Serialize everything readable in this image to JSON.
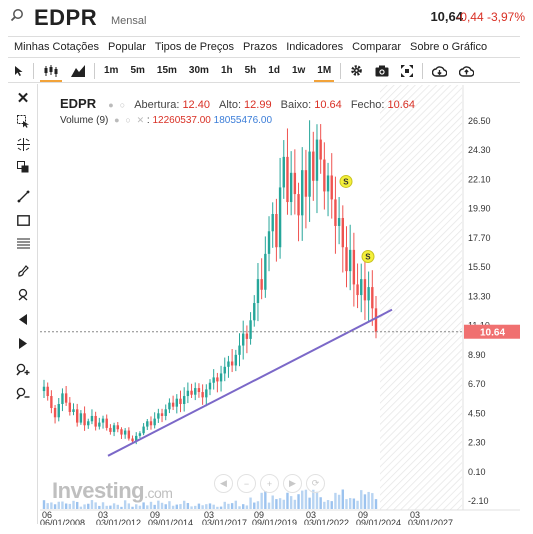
{
  "header": {
    "symbol": "EDPR",
    "period": "Mensal",
    "price": "10,64",
    "change": "-0,44 -3,97%"
  },
  "menu": [
    "Minhas Cotações",
    "Popular",
    "Tipos de Preços",
    "Prazos",
    "Indicadores",
    "Comparar",
    "Sobre o Gráfico"
  ],
  "toolbar": {
    "timeframes": [
      "1m",
      "5m",
      "15m",
      "30m",
      "1h",
      "5h",
      "1d",
      "1w",
      "1M"
    ],
    "active_timeframe": "1M"
  },
  "legend": {
    "symbol": "EDPR",
    "open_label": "Abertura:",
    "open": "12.40",
    "high_label": "Alto:",
    "high": "12.99",
    "low_label": "Baixo:",
    "low": "10.64",
    "close_label": "Fecho:",
    "close": "10.64",
    "volume_label": "Volume (9)",
    "volume_1": "12260537.00",
    "volume_2": "18055476.00"
  },
  "logo": {
    "brand": "Investing",
    "suffix": ".com"
  },
  "colors": {
    "up": "#26a69a",
    "down": "#ef5350",
    "trendline": "#7b68c8",
    "price_tag": "#f07070"
  },
  "chart_data": {
    "type": "candlestick",
    "yticks": [
      "26.50",
      "24.30",
      "22.10",
      "19.90",
      "17.70",
      "15.50",
      "13.30",
      "11.10",
      "8.90",
      "6.70",
      "4.50",
      "2.30",
      "0.10",
      "-2.10"
    ],
    "ylim": [
      -2.1,
      26.5
    ],
    "xticks_top": [
      "06",
      "03",
      "09",
      "03",
      "09",
      "03",
      "09",
      "03"
    ],
    "xticks_bottom": [
      "06/01/2008",
      "03/01/2012",
      "09/01/2014",
      "03/01/2017",
      "09/01/2019",
      "03/01/2022",
      "09/01/2024",
      "03/01/2027"
    ],
    "last_price": "10.64",
    "markers": [
      "S",
      "S"
    ],
    "closes": [
      6.5,
      5.8,
      4.9,
      4.2,
      5.2,
      6.0,
      5.3,
      4.6,
      4.8,
      3.8,
      4.5,
      3.6,
      3.9,
      4.3,
      3.5,
      3.8,
      4.1,
      3.4,
      3.1,
      3.6,
      3.3,
      2.9,
      3.2,
      2.6,
      2.4,
      2.8,
      3.0,
      3.5,
      3.9,
      3.6,
      4.1,
      4.5,
      4.3,
      4.8,
      5.3,
      5.0,
      5.6,
      5.2,
      5.8,
      6.2,
      5.9,
      6.4,
      6.1,
      5.7,
      6.3,
      6.8,
      7.2,
      6.9,
      7.5,
      8.0,
      8.4,
      8.1,
      8.9,
      9.6,
      10.5,
      10.1,
      11.5,
      12.8,
      14.6,
      13.8,
      16.5,
      18.2,
      19.5,
      17.0,
      21.5,
      23.8,
      20.4,
      22.6,
      21.0,
      19.4,
      22.8,
      20.8,
      24.2,
      22.0,
      25.1,
      23.6,
      21.2,
      22.4,
      20.6,
      18.6,
      19.2,
      17.0,
      15.2,
      16.8,
      14.2,
      13.4,
      14.6,
      13.0,
      14.0,
      12.4,
      10.64
    ]
  }
}
